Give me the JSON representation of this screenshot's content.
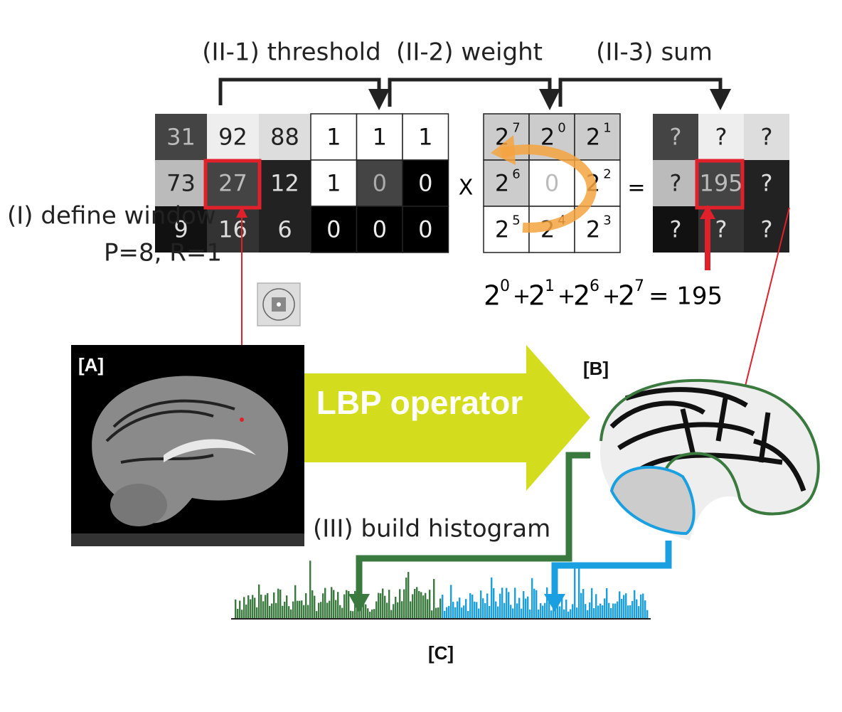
{
  "steps": {
    "threshold": "(II-1) threshold",
    "weight": "(II-2) weight",
    "sum": "(II-3) sum"
  },
  "grids": [
    {
      "cells": [
        "31",
        "92",
        "88",
        "73",
        "27",
        "12",
        "9",
        "16",
        "6"
      ]
    },
    {
      "cells": [
        "1",
        "1",
        "1",
        "1",
        "0",
        "0",
        "0",
        "0",
        "0"
      ]
    },
    {
      "cells": [
        {
          "base": "2",
          "exp": "7"
        },
        {
          "base": "2",
          "exp": "0"
        },
        {
          "base": "2",
          "exp": "1"
        },
        {
          "base": "2",
          "exp": "6"
        },
        "0",
        {
          "base": "2",
          "exp": "2"
        },
        {
          "base": "2",
          "exp": "5"
        },
        {
          "base": "2",
          "exp": "4"
        },
        {
          "base": "2",
          "exp": "3"
        }
      ]
    },
    {
      "cells": [
        "?",
        "?",
        "?",
        "?",
        "195",
        "?",
        "?",
        "?",
        "?"
      ]
    }
  ],
  "operators": {
    "times": "X",
    "equals": "="
  },
  "formula": {
    "terms": [
      {
        "base": "2",
        "exp": "0"
      },
      {
        "base": "2",
        "exp": "1"
      },
      {
        "base": "2",
        "exp": "6"
      },
      {
        "base": "2",
        "exp": "7"
      }
    ],
    "plus": "+",
    "result": "= 195"
  },
  "window": {
    "label": "(I) define window",
    "params": "P=8, R=1"
  },
  "panels": {
    "a": "[A]",
    "b": "[B]",
    "c": "[C]"
  },
  "operator": "LBP operator",
  "histogram_label": "(III) build histogram"
}
